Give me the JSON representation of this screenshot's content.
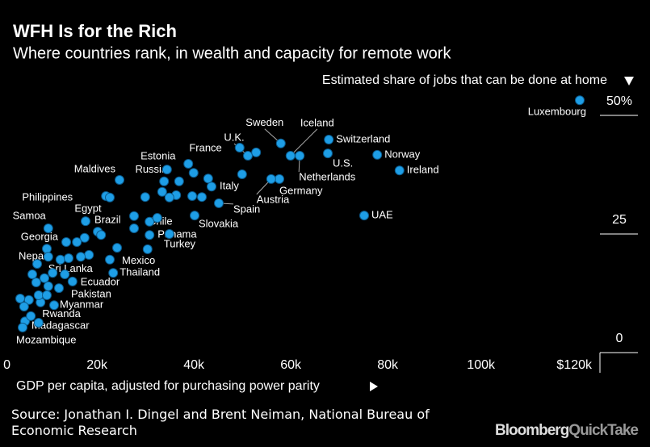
{
  "chart_data": {
    "type": "scatter",
    "title": "WFH Is for the Rich",
    "subtitle": "Where countries rank, in wealth and capacity for remote work",
    "y_label": "Estimated share of jobs that can be done at home",
    "x_label": "GDP per capita, adjusted for purchasing power parity",
    "source": "Source: Jonathan I. Dingel and Brent Neiman, National Bureau of Economic Research",
    "brand": [
      "Bloomberg",
      "QuickTake"
    ],
    "xlim": [
      0,
      120000
    ],
    "ylim": [
      0,
      50
    ],
    "xticks": [
      0,
      {
        "value": 20000,
        "label": "20k"
      },
      {
        "value": 40000,
        "label": "40k"
      },
      {
        "value": 60000,
        "label": "60k"
      },
      {
        "value": 80000,
        "label": "80k"
      },
      {
        "value": 100000,
        "label": "100k"
      },
      {
        "value": 120000,
        "label": "$120k"
      }
    ],
    "yticks": [
      0,
      25,
      {
        "value": 50,
        "label": "50%"
      }
    ],
    "series": [
      {
        "color": "#1e9ee6",
        "labels": [
          "Luxembourg",
          "Switzerland",
          "U.S.",
          "Norway",
          "Ireland",
          "UAE",
          "Sweden",
          "Iceland",
          "Netherlands",
          "Germany",
          "Austria",
          "France",
          "U.K.",
          "Italy",
          "Spain",
          "Slovakia",
          "Estonia",
          "Russia",
          "Maldives",
          "Philippines",
          "Egypt",
          "Brazil",
          "Chile",
          "Panama",
          "Turkey",
          "Mexico",
          "Thailand",
          "Samoa",
          "Georgia",
          "Nepal",
          "Sri Lanka",
          "Ecuador",
          "Pakistan",
          "Myanmar",
          "Rwanda",
          "Madagascar",
          "Mozambique",
          null,
          null,
          null,
          null,
          null,
          null,
          null,
          null,
          null,
          null,
          null,
          null,
          null,
          null,
          null,
          null,
          null,
          null,
          null,
          null,
          null,
          null,
          null,
          null,
          null,
          null,
          null,
          null,
          null,
          null,
          null,
          null,
          null,
          null,
          null,
          null,
          null,
          null,
          null
        ],
        "x": [
          118000,
          66200,
          66000,
          76200,
          80800,
          73500,
          56300,
          58300,
          60200,
          56000,
          54300,
          47800,
          49500,
          42000,
          43500,
          38500,
          32800,
          32200,
          23000,
          20200,
          16000,
          18500,
          26000,
          29200,
          28800,
          21000,
          21700,
          8300,
          8000,
          6000,
          10800,
          13300,
          10500,
          9500,
          6700,
          3500,
          3000,
          51200,
          48300,
          37200,
          38300,
          41300,
          40000,
          38000,
          35300,
          34700,
          33300,
          31800,
          28300,
          26000,
          29200,
          30800,
          33300,
          22500,
          21000,
          19200,
          16700,
          15000,
          15800,
          14200,
          12000,
          12500,
          8300,
          11700,
          9200,
          7500,
          5800,
          5000,
          8300,
          6300,
          8000,
          4300,
          3300,
          2500,
          4700,
          6300
        ],
        "values": [
          50.3,
          42.0,
          39.1,
          38.8,
          35.5,
          26.0,
          41.2,
          38.6,
          38.6,
          33.7,
          33.7,
          40.3,
          38.6,
          32.1,
          28.6,
          26.0,
          35.7,
          33.2,
          33.5,
          30.1,
          24.8,
          22.6,
          23.3,
          21.9,
          18.9,
          16.7,
          13.9,
          23.3,
          19.0,
          15.8,
          16.7,
          12.1,
          10.7,
          7.1,
          7.7,
          3.7,
          2.4,
          39.3,
          34.7,
          36.9,
          35.0,
          33.8,
          29.9,
          30.1,
          33.2,
          30.3,
          29.8,
          31.0,
          29.9,
          25.9,
          24.7,
          25.5,
          22.1,
          19.2,
          29.8,
          21.9,
          17.7,
          17.3,
          21.3,
          20.4,
          20.4,
          17.0,
          17.3,
          13.6,
          13.9,
          12.8,
          11.9,
          13.6,
          11.1,
          9.2,
          9.2,
          8.2,
          6.8,
          8.5,
          4.8,
          3.4
        ]
      }
    ]
  }
}
